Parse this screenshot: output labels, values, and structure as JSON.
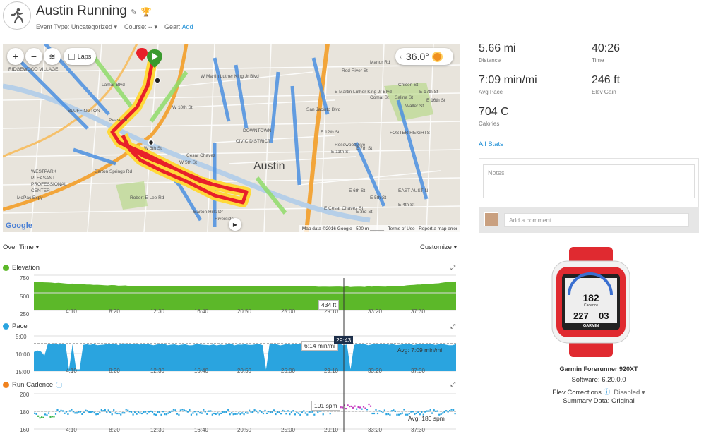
{
  "header": {
    "title": "Austin Running",
    "event_type_label": "Event Type:",
    "event_type_value": "Uncategorized",
    "course_label": "Course:",
    "course_value": "--",
    "gear_label": "Gear:",
    "gear_value": "Add"
  },
  "map": {
    "laps": "Laps",
    "temperature": "36.0°",
    "attribution": "Map data ©2016 Google",
    "scale": "500 m",
    "terms": "Terms of Use",
    "report": "Report a map error",
    "google": "Google",
    "labels": [
      "RIDGEWOOD VILLAGE",
      "BLUFFINGTON",
      "WESTPARK",
      "PLEASANT",
      "PROFESSIONAL",
      "CENTER",
      "DOWNTOWN",
      "CIVIC DISTRICT",
      "FOSTER HEIGHTS",
      "EAST AUSTIN",
      "Austin",
      "W Martin Luther King Jr Blvd",
      "E Martin Luther King Jr Blvd",
      "E 12th St",
      "MoPac Expy",
      "Barton Springs Rd",
      "W 10th St",
      "W 6th St",
      "Cesar Chavez",
      "E 7th St",
      "Manor Rd",
      "Red River St",
      "San Jacinto Blvd",
      "Lamar Blvd",
      "Robert E Lee Rd",
      "Barton Hills Dr",
      "Riverside",
      "E Cesar Chavez St",
      "W 5th St",
      "Pease Rd",
      "Rosewood Ave",
      "E 11th St",
      "E 6th St",
      "E 5th St",
      "E 4th St",
      "Chicon St",
      "Comal St",
      "Salina St",
      "Waller St",
      "E 17th St",
      "E 16th St",
      "E 3rd St"
    ]
  },
  "stats": [
    {
      "value": "5.66 mi",
      "label": "Distance"
    },
    {
      "value": "40:26",
      "label": "Time"
    },
    {
      "value": "7:09 min/mi",
      "label": "Avg Pace"
    },
    {
      "value": "246 ft",
      "label": "Elev Gain"
    },
    {
      "value": "704 C",
      "label": "Calories"
    }
  ],
  "all_stats": "All Stats",
  "notes_placeholder": "Notes",
  "comment_placeholder": "Add a comment.",
  "charts": {
    "mode": "Over Time",
    "customize": "Customize",
    "elevation": {
      "title": "Elevation",
      "color": "#5cb829",
      "yticks": [
        "750",
        "500",
        "250"
      ],
      "tooltip": "434 ft"
    },
    "pace": {
      "title": "Pace",
      "color": "#2aa4df",
      "yticks": [
        "5:00",
        "10:00",
        "15:00"
      ],
      "tooltip": "6:14 min/mi",
      "time": "29:43",
      "avg": "Avg: 7:09 min/mi"
    },
    "cadence": {
      "title": "Run Cadence",
      "color": "#f0821e",
      "yticks": [
        "200",
        "180",
        "160"
      ],
      "tooltip": "191 spm",
      "avg": "Avg: 180 spm"
    },
    "xticks": [
      "4:10",
      "8:20",
      "12:30",
      "16:40",
      "20:50",
      "25:00",
      "29:10",
      "33:20",
      "37:30"
    ]
  },
  "device": {
    "name": "Garmin Forerunner 920XT",
    "software": "Software: 6.20.0.0",
    "elev_label": "Elev Corrections",
    "elev_value": "Disabled",
    "summary": "Summary Data: Original",
    "screen_top": "182",
    "screen_sub": "Cadence",
    "screen_left": "227",
    "screen_right": "03",
    "brand": "GARMIN"
  }
}
